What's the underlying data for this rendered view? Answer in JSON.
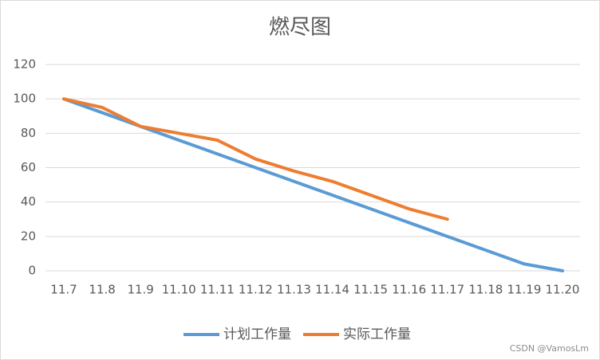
{
  "chart_data": {
    "type": "line",
    "title": "燃尽图",
    "categories": [
      "11.7",
      "11.8",
      "11.9",
      "11.10",
      "11.11",
      "11.12",
      "11.13",
      "11.14",
      "11.15",
      "11.16",
      "11.17",
      "11.18",
      "11.19",
      "11.20"
    ],
    "series": [
      {
        "name": "计划工作量",
        "color": "#5b9bd5",
        "values": [
          100,
          92,
          84,
          76,
          68,
          60,
          52,
          44,
          36,
          28,
          20,
          12,
          4,
          0
        ]
      },
      {
        "name": "实际工作量",
        "color": "#ed7d31",
        "values": [
          100,
          95,
          84,
          80,
          76,
          65,
          58,
          52,
          44,
          36,
          30,
          null,
          null,
          null
        ]
      }
    ],
    "ylim": [
      0,
      120
    ],
    "yticks": [
      0,
      20,
      40,
      60,
      80,
      100,
      120
    ],
    "grid": true,
    "legend": "bottom",
    "watermark": "CSDN @VamosLm"
  }
}
